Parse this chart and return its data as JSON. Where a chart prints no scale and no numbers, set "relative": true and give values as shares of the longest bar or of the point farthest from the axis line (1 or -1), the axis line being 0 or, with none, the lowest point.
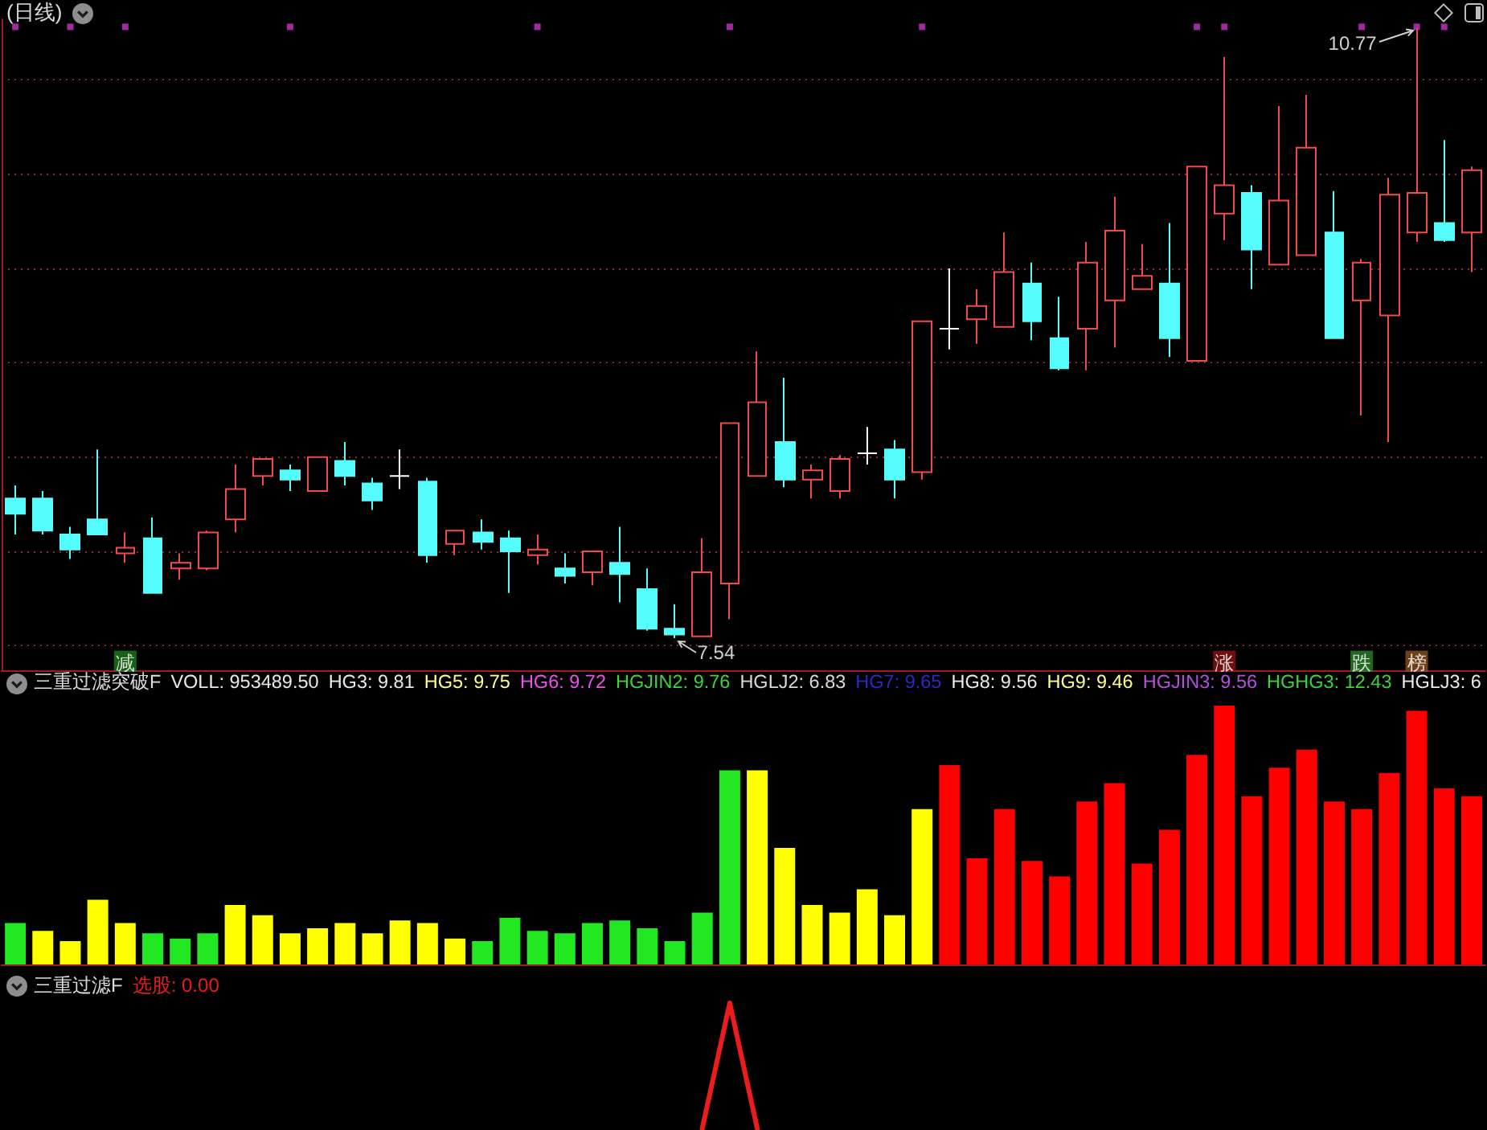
{
  "chart_data": [
    {
      "type": "candlestick",
      "title": "(日线)",
      "categories": [
        null,
        null,
        null,
        null,
        null,
        null,
        null,
        null,
        null,
        null,
        null,
        null,
        null,
        null,
        null,
        null,
        null,
        null,
        null,
        null,
        null,
        null,
        null,
        null,
        null,
        null,
        null,
        null,
        null,
        null,
        null,
        null,
        null,
        null,
        null,
        null,
        null,
        null,
        null,
        null,
        null,
        null,
        null,
        null,
        null,
        null,
        null,
        null,
        null,
        null,
        null,
        null,
        null,
        null
      ],
      "ohlc": [
        [
          8.28,
          8.35,
          8.09,
          8.2
        ],
        [
          8.28,
          8.32,
          8.09,
          8.11
        ],
        [
          8.09,
          8.13,
          7.96,
          8.01
        ],
        [
          8.17,
          8.54,
          8.09,
          8.09
        ],
        [
          7.99,
          8.1,
          7.94,
          8.02
        ],
        [
          8.07,
          8.18,
          7.78,
          7.78
        ],
        [
          7.91,
          7.99,
          7.85,
          7.94
        ],
        [
          7.91,
          8.11,
          7.9,
          8.1
        ],
        [
          8.17,
          8.46,
          8.1,
          8.33
        ],
        [
          8.4,
          8.49,
          8.35,
          8.49
        ],
        [
          8.43,
          8.46,
          8.32,
          8.38
        ],
        [
          8.32,
          8.5,
          8.32,
          8.5
        ],
        [
          8.48,
          8.58,
          8.35,
          8.4
        ],
        [
          8.36,
          8.39,
          8.22,
          8.27
        ],
        [
          8.4,
          8.54,
          8.33,
          8.4
        ],
        [
          8.37,
          8.39,
          7.94,
          7.98
        ],
        [
          8.04,
          8.11,
          7.98,
          8.11
        ],
        [
          8.1,
          8.17,
          8.01,
          8.05
        ],
        [
          8.07,
          8.11,
          7.78,
          8.0
        ],
        [
          7.98,
          8.09,
          7.93,
          8.01
        ],
        [
          7.91,
          7.99,
          7.83,
          7.87
        ],
        [
          7.89,
          8.0,
          7.82,
          8.0
        ],
        [
          7.94,
          8.13,
          7.73,
          7.88
        ],
        [
          7.8,
          7.91,
          7.58,
          7.59
        ],
        [
          7.59,
          7.72,
          7.54,
          7.56
        ],
        [
          7.55,
          8.07,
          7.55,
          7.89
        ],
        [
          7.83,
          8.68,
          7.64,
          8.68
        ],
        [
          8.4,
          9.06,
          8.4,
          8.79
        ],
        [
          8.58,
          8.92,
          8.34,
          8.38
        ],
        [
          8.38,
          8.46,
          8.28,
          8.43
        ],
        [
          8.32,
          8.51,
          8.28,
          8.49
        ],
        [
          8.52,
          8.66,
          8.46,
          8.52
        ],
        [
          8.54,
          8.59,
          8.28,
          8.38
        ],
        [
          8.42,
          9.22,
          8.38,
          9.22
        ],
        [
          9.18,
          9.5,
          9.07,
          9.18
        ],
        [
          9.23,
          9.39,
          9.1,
          9.3
        ],
        [
          9.19,
          9.69,
          9.19,
          9.48
        ],
        [
          9.42,
          9.53,
          9.12,
          9.22
        ],
        [
          9.13,
          9.35,
          8.96,
          8.97
        ],
        [
          9.18,
          9.64,
          8.96,
          9.53
        ],
        [
          9.33,
          9.88,
          9.08,
          9.7
        ],
        [
          9.39,
          9.63,
          9.39,
          9.46
        ],
        [
          9.42,
          9.74,
          9.03,
          9.13
        ],
        [
          9.01,
          10.04,
          9.01,
          10.04
        ],
        [
          9.79,
          10.62,
          9.65,
          9.94
        ],
        [
          9.9,
          9.94,
          9.39,
          9.6
        ],
        [
          9.52,
          10.36,
          9.52,
          9.86
        ],
        [
          9.57,
          10.42,
          9.57,
          10.14
        ],
        [
          9.69,
          9.91,
          9.13,
          9.13
        ],
        [
          9.33,
          9.55,
          8.72,
          9.53
        ],
        [
          9.25,
          9.98,
          8.58,
          9.89
        ],
        [
          9.69,
          10.77,
          9.64,
          9.9
        ],
        [
          9.74,
          10.18,
          9.64,
          9.65
        ],
        [
          9.69,
          10.04,
          9.48,
          10.02
        ]
      ],
      "colors": [
        "#54fcfc",
        "#54fcfc",
        "#54fcfc",
        "#54fcfc",
        "#f24b4b",
        "#54fcfc",
        "#f24b4b",
        "#f24b4b",
        "#f24b4b",
        "#f24b4b",
        "#54fcfc",
        "#f24b4b",
        "#54fcfc",
        "#54fcfc",
        "#ffffff",
        "#54fcfc",
        "#f24b4b",
        "#54fcfc",
        "#54fcfc",
        "#f24b4b",
        "#54fcfc",
        "#f24b4b",
        "#54fcfc",
        "#54fcfc",
        "#54fcfc",
        "#f24b4b",
        "#f24b4b",
        "#f24b4b",
        "#54fcfc",
        "#f24b4b",
        "#f24b4b",
        "#ffffff",
        "#54fcfc",
        "#f24b4b",
        "#ffffff",
        "#f24b4b",
        "#f24b4b",
        "#54fcfc",
        "#54fcfc",
        "#f24b4b",
        "#f24b4b",
        "#f24b4b",
        "#54fcfc",
        "#f24b4b",
        "#f24b4b",
        "#54fcfc",
        "#f24b4b",
        "#f24b4b",
        "#54fcfc",
        "#f24b4b",
        "#f24b4b",
        "#f24b4b",
        "#54fcfc",
        "#f24b4b"
      ],
      "ylim": [
        7.37,
        10.82
      ],
      "yticks": [
        {
          "value": 7.5,
          "label": null
        },
        {
          "value": 8,
          "label": null
        },
        {
          "value": 8.5,
          "label": null
        },
        {
          "value": 9,
          "label": null
        },
        {
          "value": 9.5,
          "label": null
        },
        {
          "value": 10,
          "label": null
        },
        {
          "value": 10.5,
          "label": null
        }
      ],
      "grid": "y",
      "tick_labels": false,
      "annotations": [
        {
          "text": "10.77",
          "y": 10.77
        },
        {
          "text": "7.54",
          "y": 7.54
        }
      ],
      "series": [
        {
          "type": "scatter",
          "color": "#cc33cc",
          "marker": "square",
          "values": [
            10.78,
            null,
            10.78,
            null,
            10.78,
            null,
            null,
            null,
            null,
            null,
            10.78,
            null,
            null,
            null,
            null,
            null,
            null,
            null,
            null,
            10.78,
            null,
            null,
            null,
            null,
            null,
            null,
            10.78,
            null,
            null,
            null,
            null,
            null,
            null,
            10.78,
            null,
            null,
            null,
            null,
            null,
            null,
            null,
            null,
            null,
            10.78,
            10.78,
            null,
            null,
            null,
            null,
            10.78,
            null,
            10.78,
            10.78,
            null
          ]
        },
        {
          "type": "scatter",
          "marker": "square",
          "values": [
            null,
            null,
            null,
            null,
            7.41,
            null,
            null,
            null,
            null,
            null,
            null,
            null,
            null,
            null,
            null,
            null,
            null,
            null,
            null,
            null,
            null,
            null,
            null,
            null,
            null,
            null,
            null,
            null,
            null,
            null,
            null,
            null,
            null,
            null,
            null,
            null,
            null,
            null,
            null,
            null,
            null,
            null,
            null,
            null,
            7.41,
            null,
            null,
            null,
            null,
            7.41,
            null,
            7.41,
            null,
            null
          ],
          "value_labels": [
            null,
            null,
            null,
            null,
            "减",
            null,
            null,
            null,
            null,
            null,
            null,
            null,
            null,
            null,
            null,
            null,
            null,
            null,
            null,
            null,
            null,
            null,
            null,
            null,
            null,
            null,
            null,
            null,
            null,
            null,
            null,
            null,
            null,
            null,
            null,
            null,
            null,
            null,
            null,
            null,
            null,
            null,
            null,
            null,
            "涨",
            null,
            null,
            null,
            null,
            "跌",
            null,
            "榜",
            null,
            null
          ],
          "colors": [
            null,
            null,
            null,
            null,
            "#1e7a1e",
            null,
            null,
            null,
            null,
            null,
            null,
            null,
            null,
            null,
            null,
            null,
            null,
            null,
            null,
            null,
            null,
            null,
            null,
            null,
            null,
            null,
            null,
            null,
            null,
            null,
            null,
            null,
            null,
            null,
            null,
            null,
            null,
            null,
            null,
            null,
            null,
            null,
            null,
            null,
            "#8b1414",
            null,
            null,
            null,
            null,
            "#2a7f2a",
            null,
            "#8a5020",
            null,
            null
          ]
        }
      ]
    },
    {
      "type": "bar",
      "title": "三重过滤突破F",
      "relative": true,
      "tick_labels": false,
      "categories": [
        null,
        null,
        null,
        null,
        null,
        null,
        null,
        null,
        null,
        null,
        null,
        null,
        null,
        null,
        null,
        null,
        null,
        null,
        null,
        null,
        null,
        null,
        null,
        null,
        null,
        null,
        null,
        null,
        null,
        null,
        null,
        null,
        null,
        null,
        null,
        null,
        null,
        null,
        null,
        null,
        null,
        null,
        null,
        null,
        null,
        null,
        null,
        null,
        null,
        null,
        null,
        null,
        null,
        null
      ],
      "values": [
        0.16,
        0.13,
        0.09,
        0.25,
        0.16,
        0.12,
        0.1,
        0.12,
        0.23,
        0.19,
        0.12,
        0.14,
        0.16,
        0.12,
        0.17,
        0.16,
        0.1,
        0.09,
        0.18,
        0.13,
        0.12,
        0.16,
        0.17,
        0.14,
        0.09,
        0.2,
        0.75,
        0.75,
        0.45,
        0.23,
        0.2,
        0.29,
        0.19,
        0.6,
        0.77,
        0.41,
        0.6,
        0.4,
        0.34,
        0.63,
        0.7,
        0.39,
        0.52,
        0.81,
        1,
        0.65,
        0.76,
        0.83,
        0.63,
        0.6,
        0.74,
        0.98,
        0.68,
        0.65
      ],
      "colors": [
        "#22e822",
        "#ffff00",
        "#ffff00",
        "#ffff00",
        "#ffff00",
        "#22e822",
        "#22e822",
        "#22e822",
        "#ffff00",
        "#ffff00",
        "#ffff00",
        "#ffff00",
        "#ffff00",
        "#ffff00",
        "#ffff00",
        "#ffff00",
        "#ffff00",
        "#22e822",
        "#22e822",
        "#22e822",
        "#22e822",
        "#22e822",
        "#22e822",
        "#22e822",
        "#22e822",
        "#22e822",
        "#22e822",
        "#ffff00",
        "#ffff00",
        "#ffff00",
        "#ffff00",
        "#ffff00",
        "#ffff00",
        "#ffff00",
        "#ff0000",
        "#ff0000",
        "#ff0000",
        "#ff0000",
        "#ff0000",
        "#ff0000",
        "#ff0000",
        "#ff0000",
        "#ff0000",
        "#ff0000",
        "#ff0000",
        "#ff0000",
        "#ff0000",
        "#ff0000",
        "#ff0000",
        "#ff0000",
        "#ff0000",
        "#ff0000",
        "#ff0000",
        "#ff0000"
      ],
      "annotations": [
        "VOLL: 953489.50",
        "HG3: 9.81",
        "HG5: 9.75",
        "HG6: 9.72",
        "HGJIN2: 9.76",
        "HGLJ2: 6.83",
        "HG7: 9.65",
        "HG8: 9.56",
        "HG9: 9.46",
        "HGJIN3: 9.56",
        "HGHG3: 12.43",
        "HGLJ3: 6"
      ]
    },
    {
      "type": "line",
      "title": "三重过滤F",
      "relative": true,
      "tick_labels": false,
      "marker": "none",
      "categories": [
        null,
        null,
        null,
        null,
        null,
        null,
        null,
        null,
        null,
        null,
        null,
        null,
        null,
        null,
        null,
        null,
        null,
        null,
        null,
        null,
        null,
        null,
        null,
        null,
        null,
        null,
        null,
        null,
        null,
        null,
        null,
        null,
        null,
        null,
        null,
        null,
        null,
        null,
        null,
        null,
        null,
        null,
        null,
        null,
        null,
        null,
        null,
        null,
        null,
        null,
        null,
        null,
        null,
        null
      ],
      "series": [
        {
          "color": "#ec1c1c",
          "values": [
            null,
            null,
            null,
            null,
            null,
            null,
            null,
            null,
            null,
            null,
            null,
            null,
            null,
            null,
            null,
            null,
            null,
            null,
            null,
            null,
            null,
            null,
            null,
            null,
            null,
            0,
            1,
            0,
            null,
            null,
            null,
            null,
            null,
            null,
            null,
            null,
            null,
            null,
            null,
            null,
            null,
            null,
            null,
            null,
            null,
            null,
            null,
            null,
            null,
            null,
            null,
            null,
            null,
            null
          ]
        }
      ],
      "annotations": [
        "选股: 0.00"
      ]
    }
  ]
}
